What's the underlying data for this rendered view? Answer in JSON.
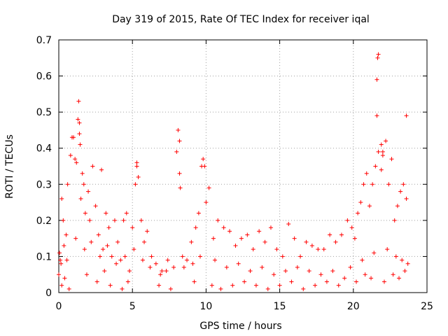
{
  "chart_data": {
    "type": "scatter",
    "title": "Day 319 of 2015, Rate Of TEC Index for receiver iqal",
    "xlabel": "GPS time / hours",
    "ylabel": "ROTI / TECUs",
    "xlim": [
      0,
      25
    ],
    "ylim": [
      0,
      0.7
    ],
    "xticks": [
      0,
      5,
      10,
      15,
      20,
      25
    ],
    "yticks": [
      0,
      0.1,
      0.2,
      0.3,
      0.4,
      0.5,
      0.6,
      0.7
    ],
    "xtick_labels": [
      "0",
      "5",
      "10",
      "15",
      "20",
      "25"
    ],
    "ytick_labels": [
      "0",
      "0.1",
      "0.2",
      "0.3",
      "0.4",
      "0.5",
      "0.6",
      "0.7"
    ],
    "grid": true,
    "marker": "+",
    "color": "#ff0000",
    "series": [
      {
        "name": "ROTI",
        "x": [
          0.0,
          0.1,
          0.2,
          0.3,
          0.5,
          0.6,
          0.8,
          1.0,
          1.2,
          1.3,
          1.4,
          1.5,
          1.6,
          1.7,
          1.8,
          2.0,
          2.1,
          2.3,
          2.5,
          2.7,
          2.9,
          3.0,
          3.2,
          3.4,
          3.6,
          3.8,
          4.0,
          4.2,
          4.4,
          4.6,
          4.8,
          5.0,
          5.2,
          5.3,
          5.4,
          5.6,
          5.8,
          6.0,
          6.3,
          6.6,
          7.0,
          7.4,
          7.8,
          8.0,
          8.1,
          8.2,
          8.4,
          8.7,
          9.0,
          9.3,
          9.5,
          9.7,
          9.8,
          10.0,
          10.2,
          10.5,
          10.8,
          11.2,
          11.6,
          12.0,
          12.4,
          12.8,
          13.2,
          13.6,
          14.0,
          14.4,
          14.8,
          15.2,
          15.6,
          16.0,
          16.4,
          16.8,
          17.2,
          17.6,
          18.0,
          18.4,
          18.8,
          19.2,
          19.6,
          19.9,
          20.1,
          20.3,
          20.5,
          20.7,
          20.9,
          21.1,
          21.3,
          21.5,
          21.6,
          21.7,
          21.9,
          22.0,
          22.2,
          22.4,
          22.6,
          22.8,
          23.0,
          23.2,
          23.4,
          23.6,
          1.35,
          1.4,
          0.9,
          1.1,
          5.3,
          8.2,
          9.9,
          21.65,
          21.6,
          21.7,
          23.6,
          22.0,
          21.9,
          1.45,
          8.25,
          0.2,
          0.4,
          0.7,
          1.9,
          2.6,
          3.1,
          3.5,
          4.3,
          4.7,
          6.8,
          7.6,
          9.2,
          10.4,
          11.0,
          11.8,
          12.6,
          13.4,
          14.2,
          15.0,
          15.8,
          16.6,
          17.4,
          18.2,
          19.0,
          19.4,
          20.2,
          20.8,
          21.2,
          22.1,
          22.7,
          23.1,
          23.5,
          0.05,
          0.15,
          0.35,
          0.55,
          1.15,
          1.75,
          2.2,
          2.8,
          3.3,
          3.9,
          4.5,
          5.1,
          5.7,
          6.2,
          6.9,
          7.3,
          8.5,
          9.1,
          9.6,
          10.6,
          11.4,
          12.2,
          13.0,
          13.8,
          14.6,
          15.4,
          16.2,
          17.0,
          17.8,
          18.6,
          19.8,
          20.6,
          21.4,
          22.3,
          22.9,
          23.3,
          23.7
        ],
        "y": [
          0.05,
          0.09,
          0.26,
          0.2,
          0.16,
          0.3,
          0.38,
          0.43,
          0.36,
          0.48,
          0.44,
          0.26,
          0.33,
          0.3,
          0.22,
          0.28,
          0.2,
          0.35,
          0.24,
          0.16,
          0.34,
          0.12,
          0.22,
          0.18,
          0.1,
          0.2,
          0.14,
          0.09,
          0.2,
          0.22,
          0.06,
          0.18,
          0.3,
          0.36,
          0.32,
          0.2,
          0.14,
          0.17,
          0.1,
          0.08,
          0.06,
          0.09,
          0.07,
          0.39,
          0.45,
          0.33,
          0.1,
          0.09,
          0.14,
          0.18,
          0.22,
          0.35,
          0.37,
          0.25,
          0.29,
          0.15,
          0.2,
          0.18,
          0.17,
          0.13,
          0.15,
          0.16,
          0.12,
          0.17,
          0.14,
          0.18,
          0.12,
          0.1,
          0.19,
          0.15,
          0.1,
          0.14,
          0.13,
          0.12,
          0.12,
          0.16,
          0.14,
          0.16,
          0.2,
          0.18,
          0.15,
          0.22,
          0.25,
          0.3,
          0.33,
          0.24,
          0.3,
          0.35,
          0.59,
          0.66,
          0.41,
          0.39,
          0.42,
          0.3,
          0.37,
          0.2,
          0.24,
          0.28,
          0.3,
          0.26,
          0.53,
          0.47,
          0.43,
          0.37,
          0.35,
          0.42,
          0.35,
          0.65,
          0.49,
          0.39,
          0.49,
          0.38,
          0.34,
          0.41,
          0.29,
          0.02,
          0.04,
          0.01,
          0.05,
          0.03,
          0.06,
          0.02,
          0.01,
          0.03,
          0.02,
          0.01,
          0.03,
          0.02,
          0.01,
          0.02,
          0.03,
          0.02,
          0.01,
          0.02,
          0.03,
          0.01,
          0.02,
          0.03,
          0.02,
          0.04,
          0.03,
          0.05,
          0.04,
          0.03,
          0.05,
          0.04,
          0.06,
          0.11,
          0.08,
          0.13,
          0.09,
          0.15,
          0.12,
          0.14,
          0.1,
          0.13,
          0.08,
          0.1,
          0.12,
          0.09,
          0.07,
          0.05,
          0.06,
          0.07,
          0.08,
          0.1,
          0.09,
          0.07,
          0.08,
          0.06,
          0.07,
          0.05,
          0.06,
          0.07,
          0.06,
          0.05,
          0.06,
          0.07,
          0.09,
          0.11,
          0.12,
          0.1,
          0.09,
          0.08
        ]
      }
    ]
  }
}
